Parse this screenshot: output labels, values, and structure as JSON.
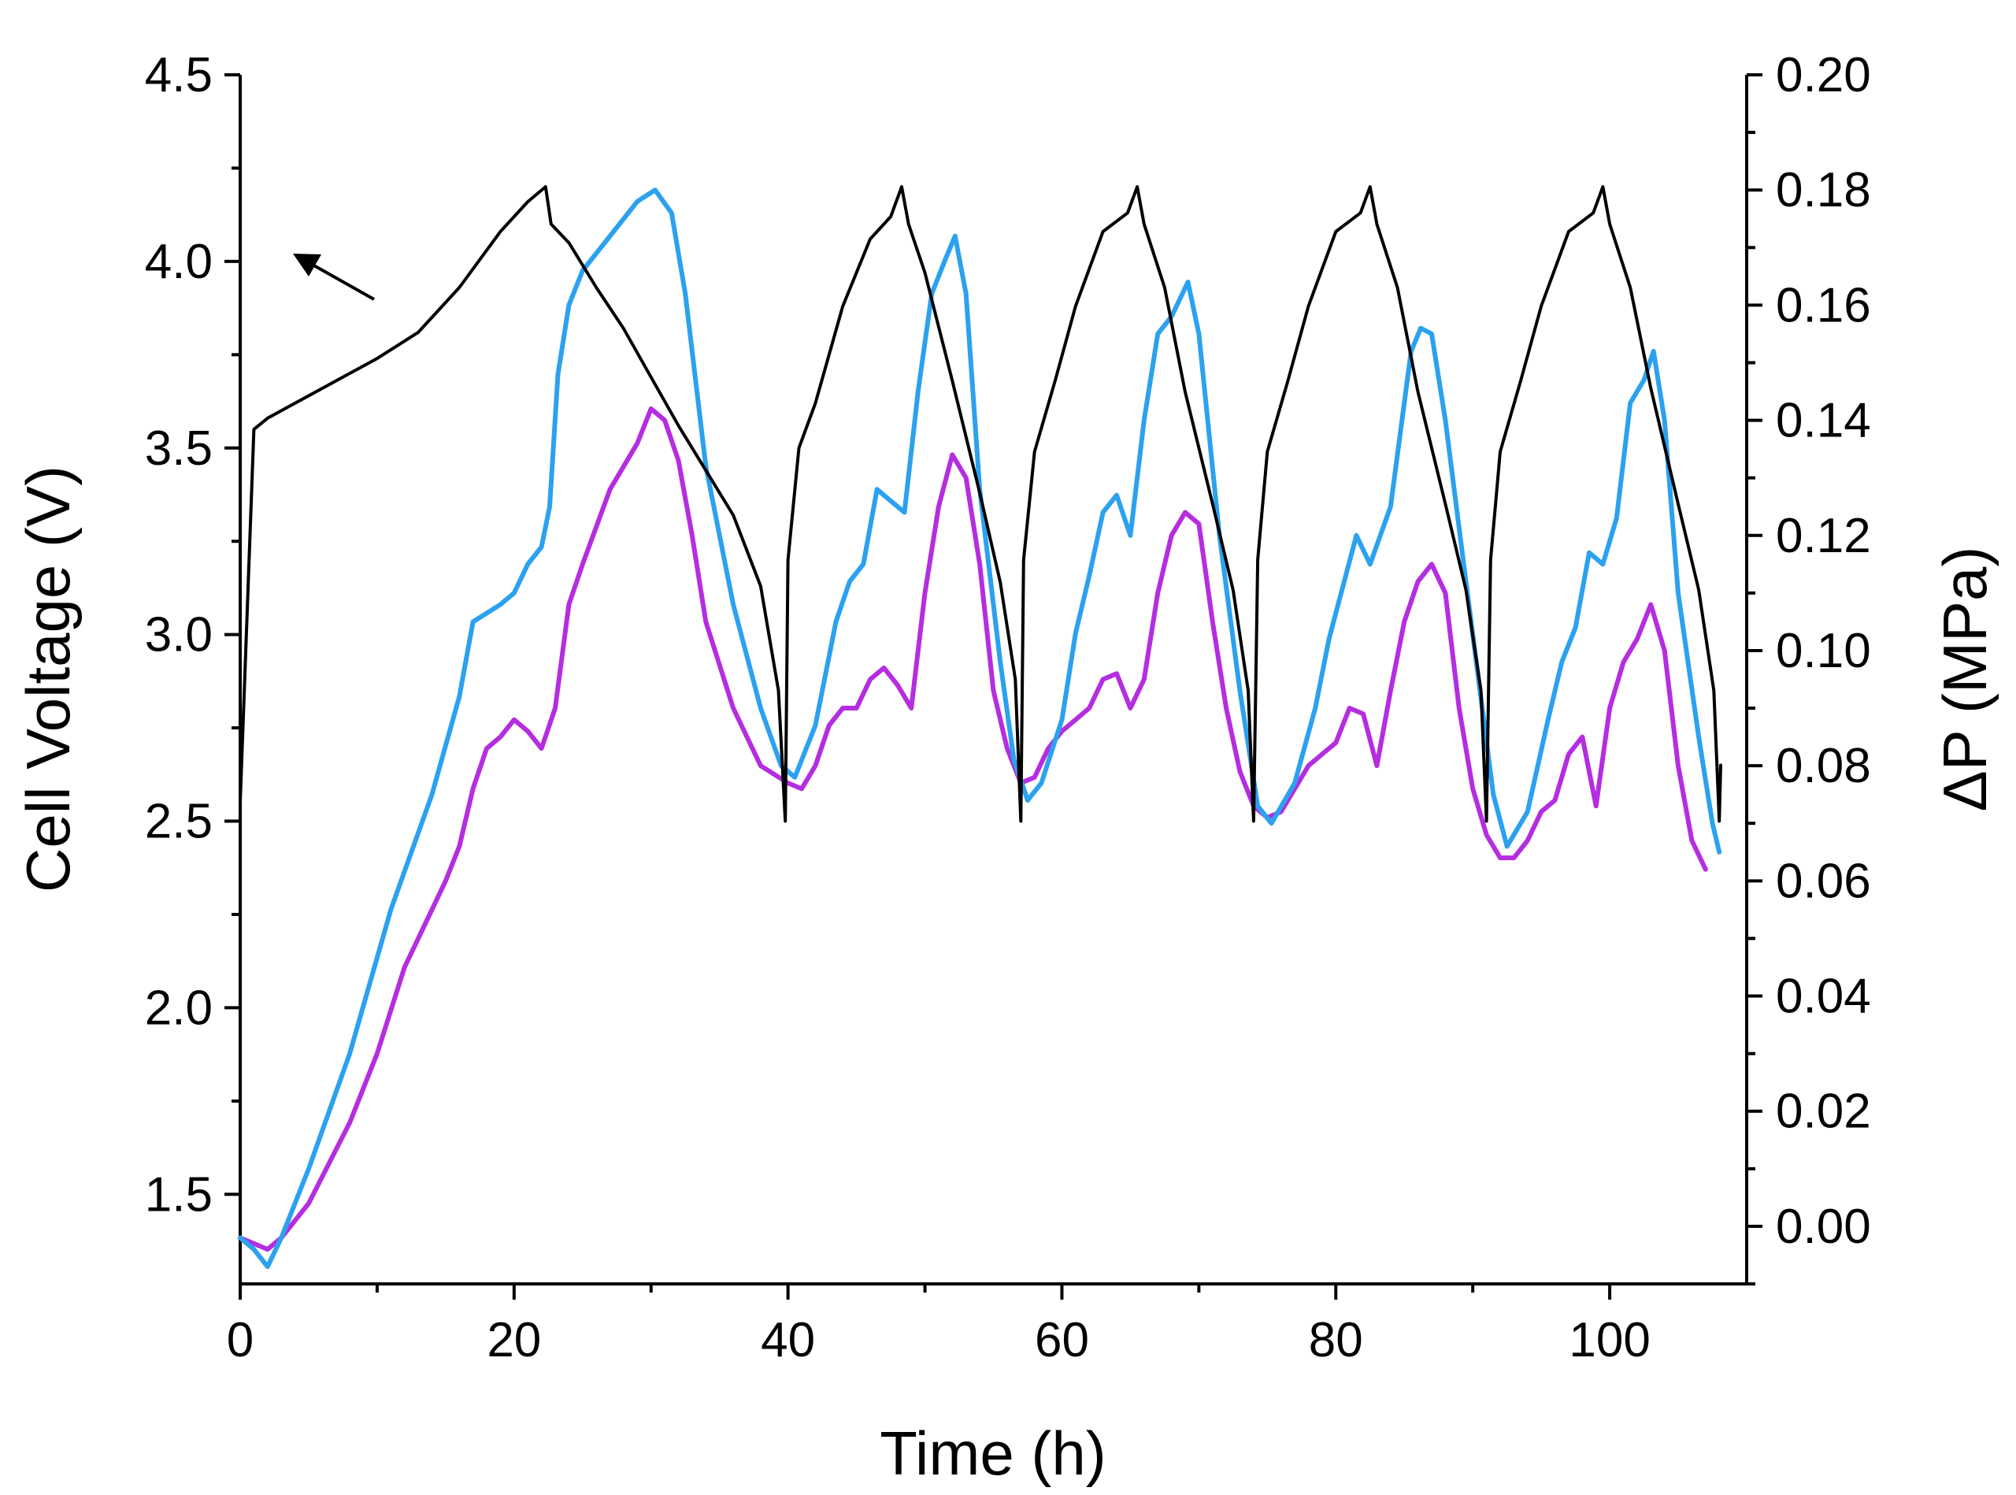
{
  "chart_data": {
    "type": "line",
    "title": "",
    "xlabel": "Time (h)",
    "ylabel": "Cell Voltage (V)",
    "y2label": "ΔP (MPa)",
    "xlim": [
      0,
      110
    ],
    "ylim": [
      1.26,
      4.5
    ],
    "y2lim": [
      -0.01,
      0.2
    ],
    "x_ticks": [
      "0",
      "20",
      "40",
      "60",
      "80",
      "100"
    ],
    "y_ticks": [
      "1.5",
      "2.0",
      "2.5",
      "3.0",
      "3.5",
      "4.0",
      "4.5"
    ],
    "y2_ticks": [
      "0.00",
      "0.02",
      "0.04",
      "0.06",
      "0.08",
      "0.10",
      "0.12",
      "0.14",
      "0.16",
      "0.18",
      "0.20"
    ],
    "annotation": {
      "type": "arrow",
      "direction": "left",
      "meaning": "black curve refers to left axis"
    },
    "series": [
      {
        "name": "Cell Voltage",
        "axis": "left",
        "color": "#000000",
        "x": [
          0,
          1,
          2,
          4,
          7,
          10,
          13,
          16,
          19,
          21,
          22.3,
          22.7,
          24,
          26,
          28,
          30,
          32,
          34,
          36,
          38,
          39.3,
          39.8,
          40,
          40.8,
          42,
          44,
          46,
          47.5,
          48.3,
          48.8,
          50,
          52,
          54,
          55.5,
          56.6,
          57,
          57.2,
          58,
          59.5,
          61,
          63,
          64.8,
          65.5,
          66,
          67.5,
          69,
          71,
          72.5,
          73.6,
          74,
          74.3,
          75,
          76.5,
          78,
          80,
          81.8,
          82.5,
          83,
          84.5,
          86,
          88,
          89.5,
          90.6,
          91,
          91.3,
          92,
          93.5,
          95,
          97,
          98.8,
          99.5,
          100,
          101.5,
          103,
          105,
          106.5,
          107.6,
          108,
          108.1
        ],
        "y": [
          2.55,
          3.55,
          3.58,
          3.62,
          3.68,
          3.74,
          3.81,
          3.93,
          4.08,
          4.16,
          4.2,
          4.1,
          4.05,
          3.93,
          3.82,
          3.69,
          3.56,
          3.44,
          3.32,
          3.13,
          2.85,
          2.5,
          3.2,
          3.5,
          3.62,
          3.88,
          4.06,
          4.12,
          4.2,
          4.1,
          3.97,
          3.68,
          3.38,
          3.14,
          2.88,
          2.5,
          3.2,
          3.49,
          3.68,
          3.88,
          4.08,
          4.13,
          4.2,
          4.1,
          3.93,
          3.65,
          3.35,
          3.12,
          2.85,
          2.5,
          3.2,
          3.49,
          3.68,
          3.88,
          4.08,
          4.13,
          4.2,
          4.1,
          3.93,
          3.65,
          3.35,
          3.12,
          2.85,
          2.5,
          3.2,
          3.49,
          3.68,
          3.88,
          4.08,
          4.13,
          4.2,
          4.1,
          3.93,
          3.66,
          3.35,
          3.12,
          2.85,
          2.5,
          2.65
        ]
      },
      {
        "name": "ΔP (blue)",
        "axis": "right",
        "color": "#2ba1f0",
        "x": [
          0,
          1,
          2,
          3,
          5,
          8,
          11,
          14,
          16,
          17,
          19,
          20,
          21,
          22,
          22.6,
          23.2,
          24,
          25,
          27,
          29,
          30.3,
          31.5,
          32.5,
          34,
          36,
          38,
          39.5,
          40.5,
          42,
          43.5,
          44.5,
          45.5,
          46.5,
          47.5,
          48.5,
          49.5,
          50.5,
          51.5,
          52.2,
          53,
          54,
          55.5,
          56.5,
          57.5,
          58.5,
          60,
          61,
          62,
          63,
          64,
          65,
          66,
          67,
          68,
          69.2,
          70,
          71.5,
          73,
          74.3,
          75.3,
          77,
          78.5,
          79.5,
          80.5,
          81.5,
          82.5,
          84,
          85.5,
          86.2,
          87,
          88,
          89.5,
          91.5,
          92.5,
          94,
          95.5,
          96.5,
          97.5,
          98.5,
          99.5,
          100.5,
          101.5,
          102.5,
          103.2,
          104,
          105,
          106.5,
          107.5,
          108
        ],
        "y": [
          -0.002,
          -0.004,
          -0.007,
          -0.002,
          0.01,
          0.03,
          0.055,
          0.075,
          0.092,
          0.105,
          0.108,
          0.11,
          0.115,
          0.118,
          0.125,
          0.148,
          0.16,
          0.166,
          0.172,
          0.178,
          0.18,
          0.176,
          0.162,
          0.132,
          0.108,
          0.09,
          0.08,
          0.078,
          0.087,
          0.105,
          0.112,
          0.115,
          0.128,
          0.126,
          0.124,
          0.145,
          0.162,
          0.168,
          0.172,
          0.162,
          0.128,
          0.098,
          0.081,
          0.074,
          0.077,
          0.088,
          0.103,
          0.113,
          0.124,
          0.127,
          0.12,
          0.14,
          0.155,
          0.158,
          0.164,
          0.155,
          0.12,
          0.093,
          0.073,
          0.07,
          0.077,
          0.09,
          0.102,
          0.111,
          0.12,
          0.115,
          0.125,
          0.152,
          0.156,
          0.155,
          0.14,
          0.112,
          0.075,
          0.066,
          0.072,
          0.088,
          0.098,
          0.104,
          0.117,
          0.115,
          0.123,
          0.143,
          0.147,
          0.152,
          0.14,
          0.11,
          0.085,
          0.07,
          0.065
        ]
      },
      {
        "name": "ΔP (purple)",
        "axis": "right",
        "color": "#b52de0",
        "x": [
          0,
          1,
          2,
          3,
          5,
          8,
          10,
          12,
          14,
          15,
          16,
          17,
          18,
          19,
          20,
          21,
          22,
          23,
          24,
          25,
          27,
          29,
          30,
          31,
          32,
          33,
          34,
          36,
          38,
          40,
          41,
          42,
          43,
          44,
          45,
          46,
          47,
          48,
          49,
          50,
          51,
          52,
          53,
          54,
          55,
          56,
          57,
          58,
          59,
          60,
          61,
          62,
          63,
          64,
          65,
          66,
          67,
          68,
          69,
          70,
          71,
          72,
          73,
          74,
          75,
          76,
          77,
          78,
          79,
          80,
          81,
          82,
          83,
          84,
          85,
          86,
          87,
          88,
          89,
          90,
          91,
          92,
          93,
          94,
          95,
          96,
          97,
          98,
          99,
          100,
          101,
          102,
          103,
          104,
          105,
          106,
          107
        ],
        "y": [
          -0.002,
          -0.003,
          -0.004,
          -0.002,
          0.004,
          0.018,
          0.03,
          0.045,
          0.055,
          0.06,
          0.066,
          0.076,
          0.083,
          0.085,
          0.088,
          0.086,
          0.083,
          0.09,
          0.108,
          0.115,
          0.128,
          0.136,
          0.142,
          0.14,
          0.133,
          0.12,
          0.105,
          0.09,
          0.08,
          0.077,
          0.076,
          0.08,
          0.087,
          0.09,
          0.09,
          0.095,
          0.097,
          0.094,
          0.09,
          0.11,
          0.125,
          0.134,
          0.13,
          0.115,
          0.093,
          0.083,
          0.077,
          0.078,
          0.083,
          0.086,
          0.088,
          0.09,
          0.095,
          0.096,
          0.09,
          0.095,
          0.11,
          0.12,
          0.124,
          0.122,
          0.105,
          0.09,
          0.079,
          0.073,
          0.071,
          0.072,
          0.076,
          0.08,
          0.082,
          0.084,
          0.09,
          0.089,
          0.08,
          0.093,
          0.105,
          0.112,
          0.115,
          0.11,
          0.09,
          0.076,
          0.068,
          0.064,
          0.064,
          0.067,
          0.072,
          0.074,
          0.082,
          0.085,
          0.073,
          0.09,
          0.098,
          0.102,
          0.108,
          0.1,
          0.08,
          0.067,
          0.062
        ]
      }
    ]
  }
}
